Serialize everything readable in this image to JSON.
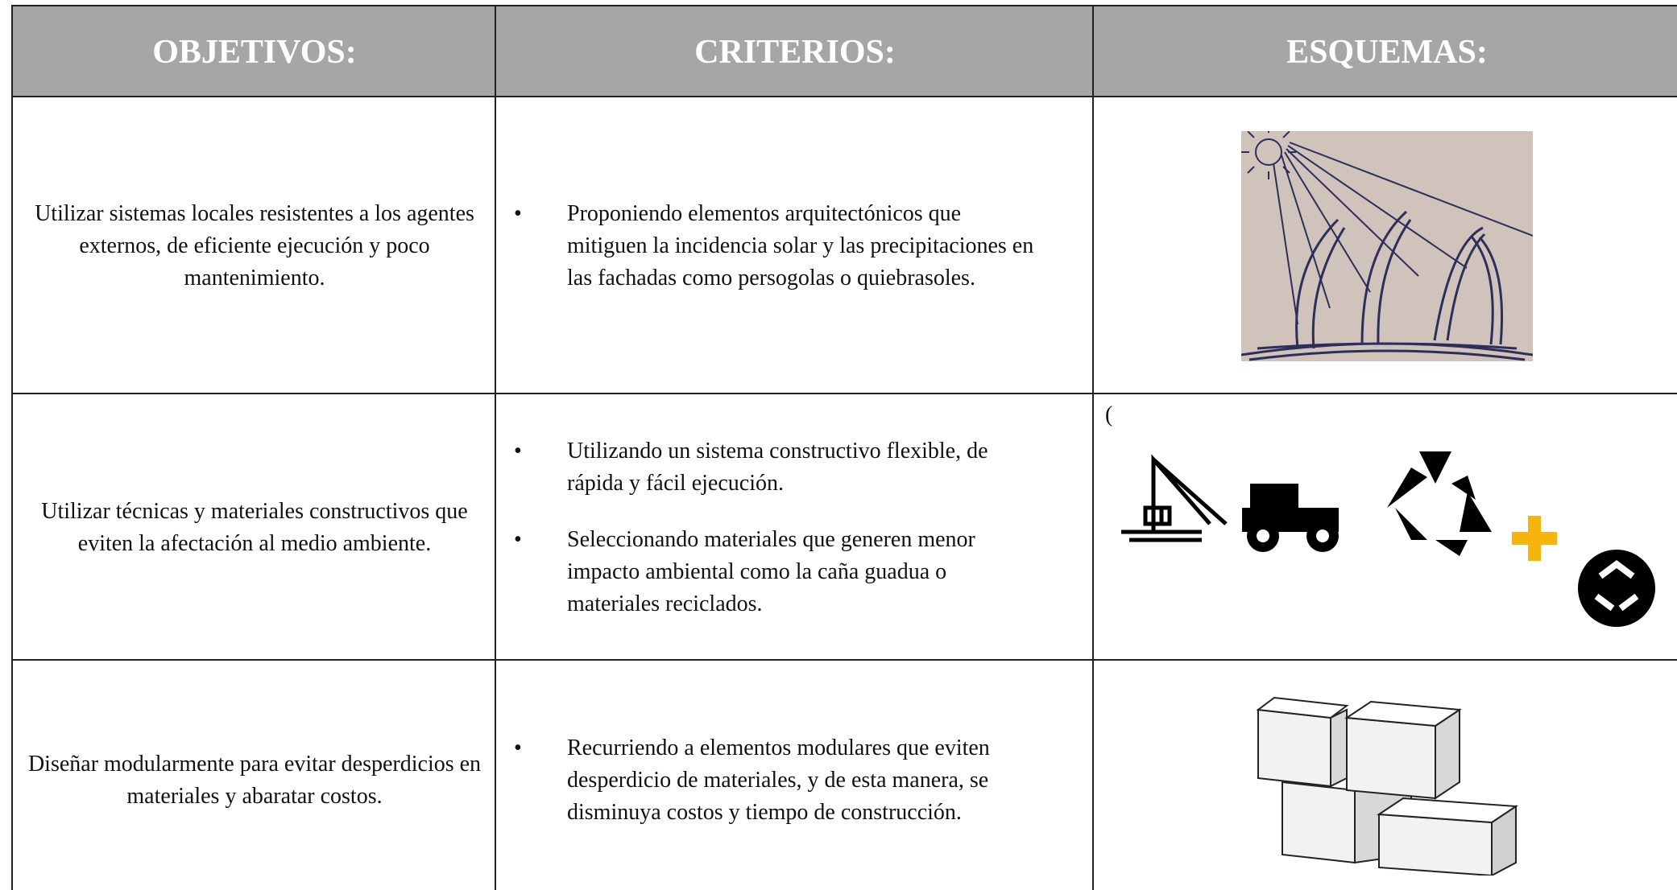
{
  "table": {
    "headers": [
      "OBJETIVOS:",
      "CRITERIOS:",
      "ESQUEMAS:"
    ],
    "rows": [
      {
        "objetivo": "Utilizar sistemas locales resistentes a los agentes externos, de eficiente ejecución y poco mantenimiento.",
        "criterios": [
          "Proponiendo elementos arquitectónicos que mitiguen la incidencia solar y las precipitaciones en las fachadas como persogolas o quiebrasoles."
        ]
      },
      {
        "objetivo": "Utilizar técnicas y materiales constructivos que eviten la afectación al medio ambiente.",
        "criterios": [
          "Utilizando un sistema constructivo  flexible, de rápida y fácil ejecución.",
          "Seleccionando materiales que generen  menor impacto ambiental como la caña guadua  o materiales reciclados."
        ],
        "esquema_nota": "("
      },
      {
        "objetivo": "Diseñar  modularmente para evitar desperdicios en materiales y abaratar costos.",
        "criterios": [
          "Recurriendo a elementos modulares que eviten desperdicio de materiales, y de esta manera, se disminuya  costos y tiempo de construcción."
        ]
      }
    ]
  }
}
